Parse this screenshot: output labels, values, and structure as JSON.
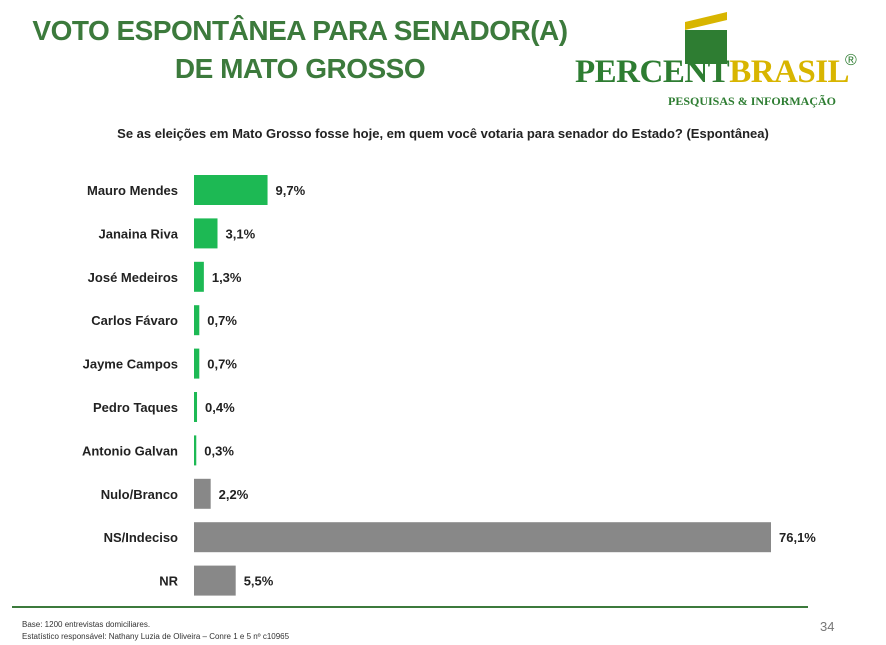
{
  "header": {
    "title_line1": "VOTO ESPONTÂNEA PARA SENADOR(A)",
    "title_line2": "DE MATO GROSSO",
    "question": "Se as eleições em Mato Grosso fosse hoje, em quem você votaria para senador do Estado? (Espontânea)"
  },
  "logo": {
    "name_part1": "PERCENT",
    "name_part2": "BRASIL",
    "registered": "®",
    "tagline": "PESQUISAS & INFORMAÇÃO"
  },
  "chart_data": {
    "type": "bar",
    "orientation": "horizontal",
    "categories": [
      "Mauro Mendes",
      "Janaina Riva",
      "José Medeiros",
      "Carlos Fávaro",
      "Jayme Campos",
      "Pedro Taques",
      "Antonio Galvan",
      "Nulo/Branco",
      "NS/Indeciso",
      "NR"
    ],
    "values": [
      9.7,
      3.1,
      1.3,
      0.7,
      0.7,
      0.4,
      0.3,
      2.2,
      76.1,
      5.5
    ],
    "data_labels": [
      "9,7%",
      "3,1%",
      "1,3%",
      "0,7%",
      "0,7%",
      "0,4%",
      "0,3%",
      "2,2%",
      "76,1%",
      "5,5%"
    ],
    "bar_colors": [
      "#1db954",
      "#1db954",
      "#1db954",
      "#1db954",
      "#1db954",
      "#1db954",
      "#1db954",
      "#888888",
      "#888888",
      "#888888"
    ],
    "xlim": [
      0,
      76.1
    ],
    "grid": false,
    "legend": "none"
  },
  "footer": {
    "base": "Base: 1200 entrevistas domiciliares.",
    "statistician": "Estatístico responsável: Nathany Luzia de Oliveira – Conre 1 e 5 nº c10965",
    "page_number": "34"
  }
}
